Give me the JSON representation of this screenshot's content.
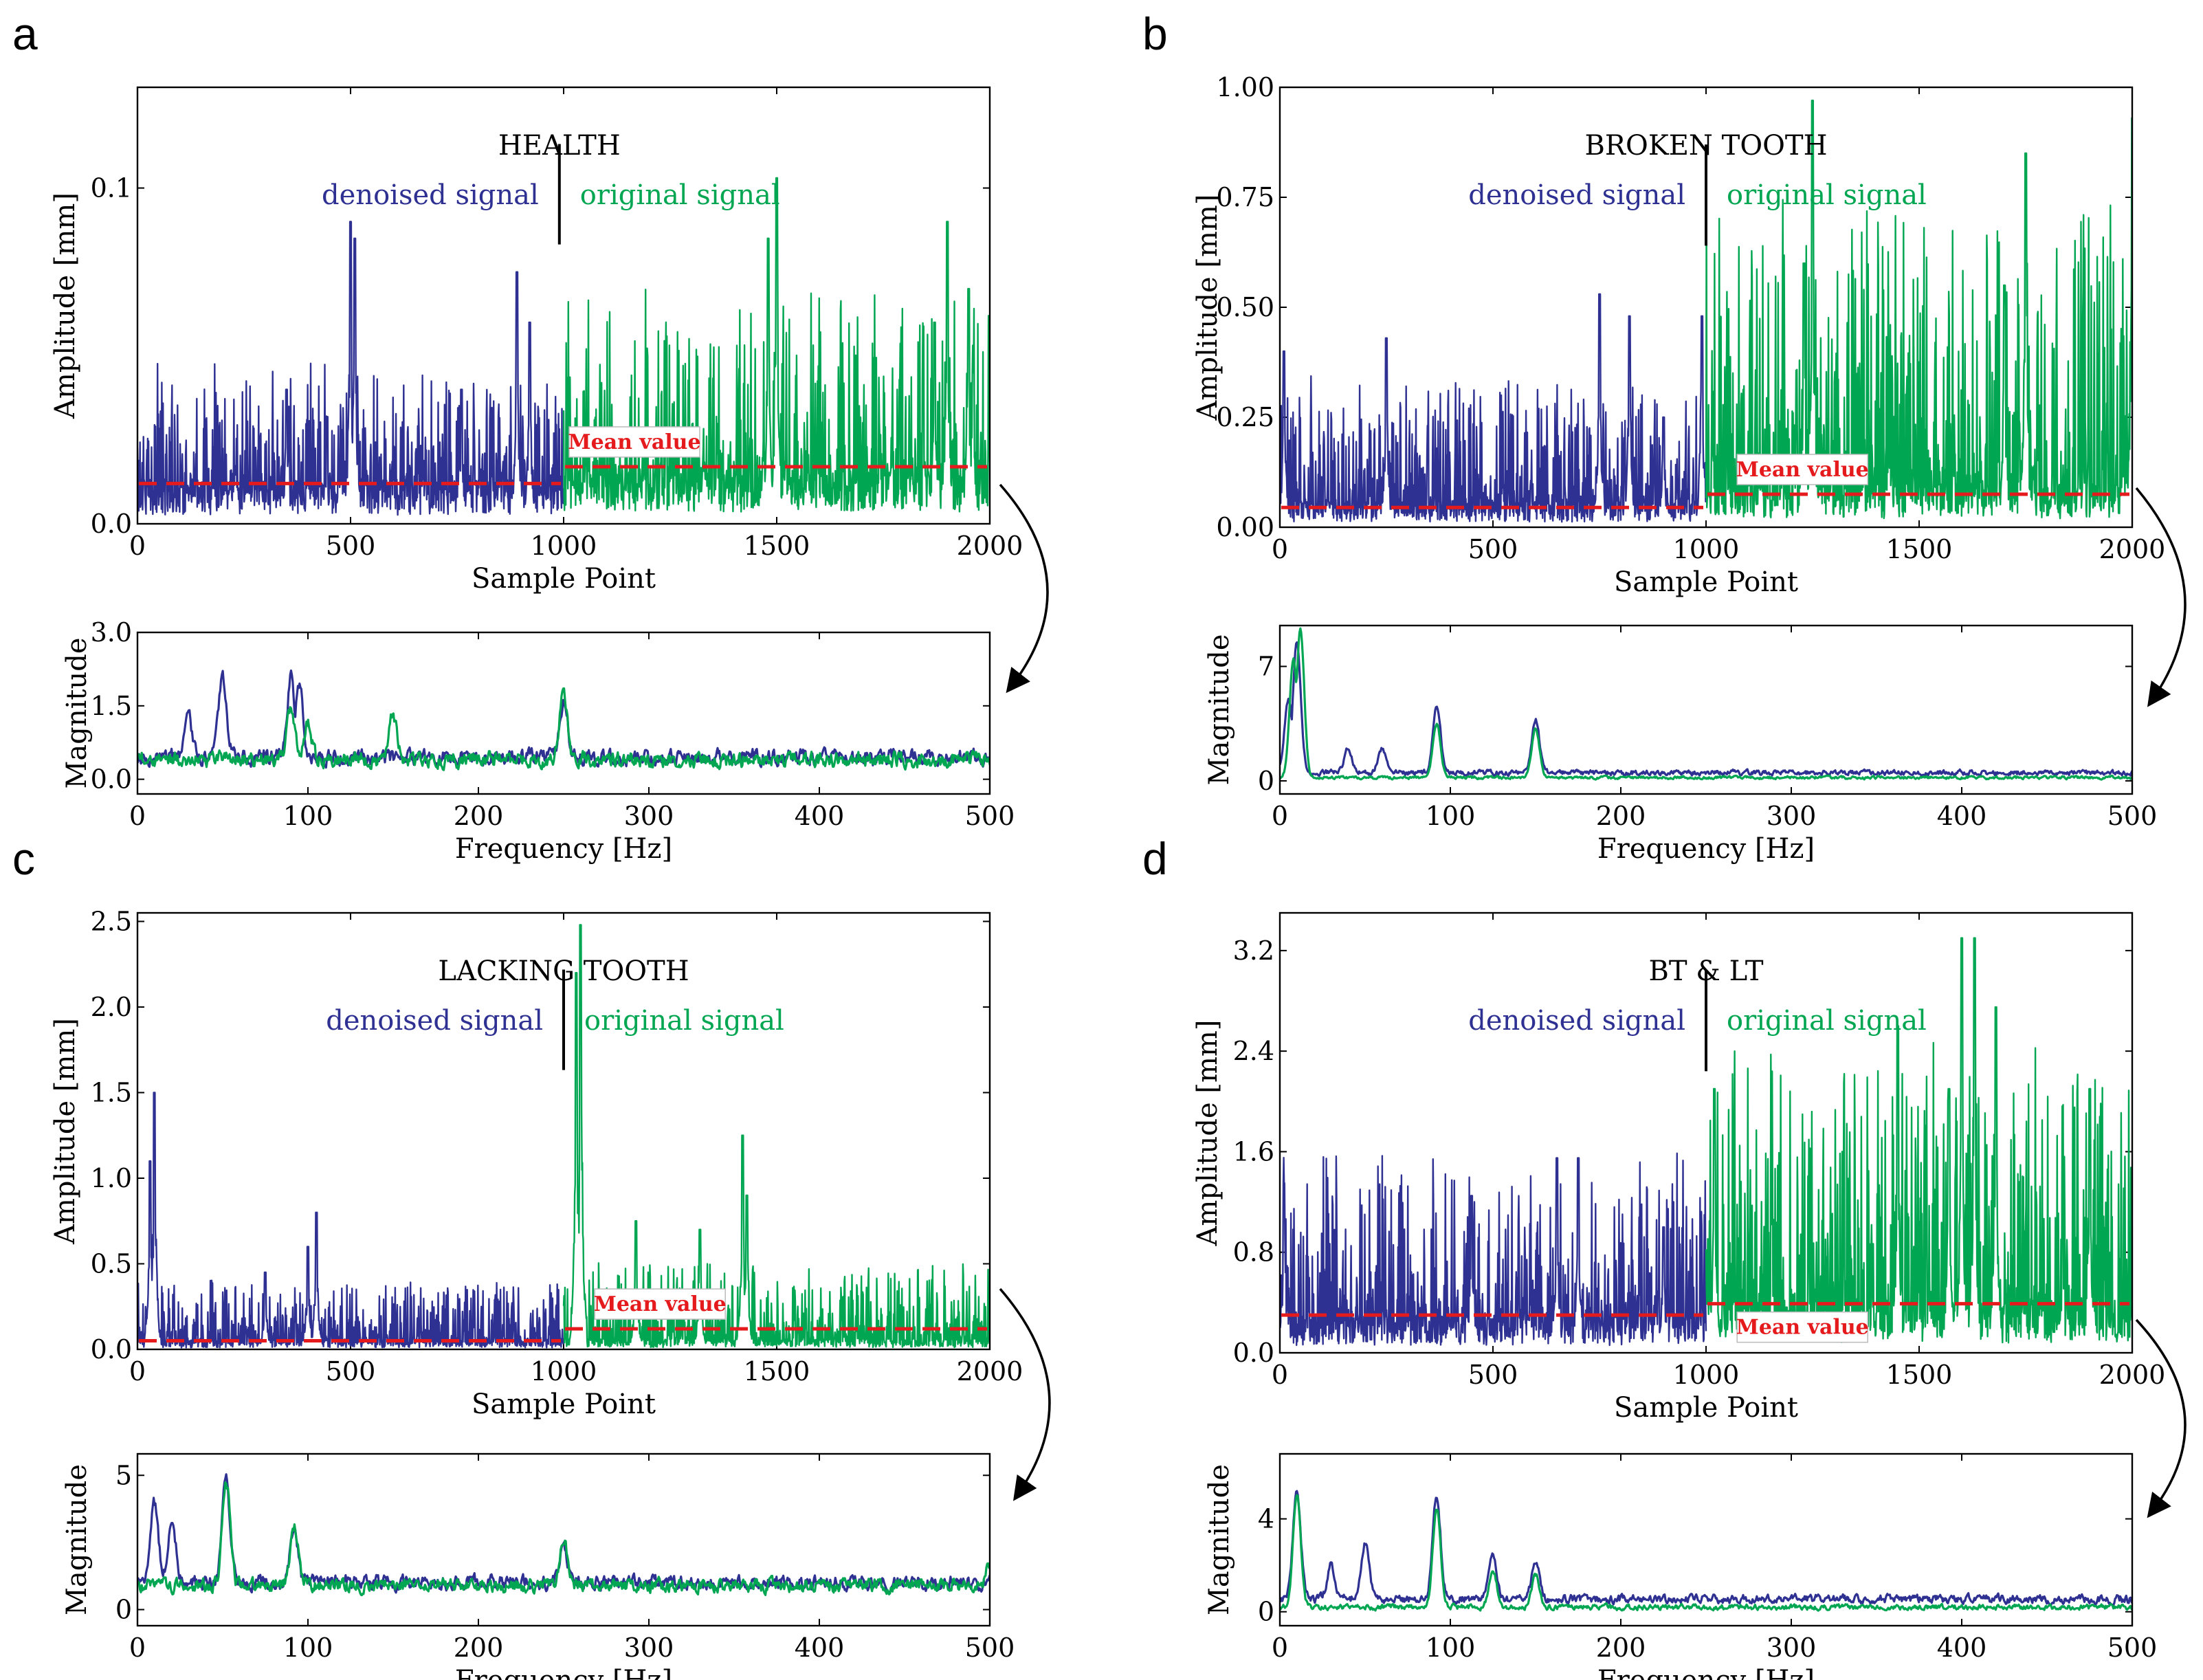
{
  "figure": {
    "colors": {
      "denoised": "#2e3192",
      "original": "#00a651",
      "mean": "#e41a1c",
      "axis": "#000000"
    },
    "icons": {
      "arrow": "curved-arrow-icon"
    }
  },
  "chart_data": [
    {
      "panel": "a",
      "type": "line",
      "title": "HEALTH",
      "time": {
        "xlabel": "Sample Point",
        "ylabel": "Amplitude [mm]",
        "xlim": [
          0,
          2000
        ],
        "ylim": [
          0,
          0.13
        ],
        "xticks": [
          0,
          500,
          1000,
          1500,
          2000
        ],
        "xtick_labels": [
          "0",
          "500",
          "1000",
          "1500",
          "2000"
        ],
        "yticks": [
          0,
          0.1
        ],
        "ytick_labels": [
          "0.0",
          "0.1"
        ],
        "series": [
          {
            "name": "denoised signal",
            "x_range": [
              0,
              1000
            ],
            "base": 0.013,
            "noise": 0.012,
            "peaks": [
              [
                500,
                0.09
              ],
              [
                510,
                0.085
              ],
              [
                890,
                0.075
              ],
              [
                920,
                0.06
              ],
              [
                760,
                0.04
              ],
              [
                350,
                0.04
              ]
            ]
          },
          {
            "name": "original signal",
            "x_range": [
              1000,
              2000
            ],
            "base": 0.017,
            "noise": 0.018,
            "peaks": [
              [
                1500,
                0.103
              ],
              [
                1480,
                0.085
              ],
              [
                1900,
                0.09
              ],
              [
                1950,
                0.07
              ],
              [
                1870,
                0.06
              ],
              [
                1960,
                0.045
              ]
            ]
          }
        ],
        "divider_x": 990,
        "mean_lines": [
          {
            "label": "denoised mean",
            "x_range": [
              0,
              1000
            ],
            "value": 0.012
          },
          {
            "label": "original mean",
            "x_range": [
              1000,
              2000
            ],
            "value": 0.017
          }
        ],
        "mean_label": "Mean value",
        "mean_label_x": 1000,
        "text_labels": {
          "denoised": "denoised signal",
          "original": "original signal"
        }
      },
      "freq": {
        "xlabel": "Frequency [Hz]",
        "ylabel": "Magnitude",
        "xlim": [
          0,
          500
        ],
        "ylim": [
          -0.3,
          3.0
        ],
        "xticks": [
          0,
          100,
          200,
          300,
          400,
          500
        ],
        "xtick_labels": [
          "0",
          "100",
          "200",
          "300",
          "400",
          "500"
        ],
        "yticks": [
          0,
          1.5,
          3.0
        ],
        "ytick_labels": [
          "0.0",
          "1.5",
          "3.0"
        ],
        "denoised": {
          "base": 0.45,
          "noise": 0.35,
          "peaks": [
            [
              50,
              2.1
            ],
            [
              90,
              2.1
            ],
            [
              95,
              2.0
            ],
            [
              250,
              1.6
            ],
            [
              30,
              1.2
            ]
          ]
        },
        "original": {
          "base": 0.4,
          "noise": 0.35,
          "peaks": [
            [
              90,
              1.5
            ],
            [
              150,
              1.3
            ],
            [
              250,
              1.8
            ],
            [
              100,
              1.2
            ]
          ]
        }
      }
    },
    {
      "panel": "b",
      "type": "line",
      "title": "BROKEN TOOTH",
      "time": {
        "xlabel": "Sample Point",
        "ylabel": "Amplitude [mm]",
        "xlim": [
          0,
          2000
        ],
        "ylim": [
          0,
          1.0
        ],
        "xticks": [
          0,
          500,
          1000,
          1500,
          2000
        ],
        "xtick_labels": [
          "0",
          "500",
          "1000",
          "1500",
          "2000"
        ],
        "yticks": [
          0,
          0.25,
          0.5,
          0.75,
          1.0
        ],
        "ytick_labels": [
          "0.00",
          "0.25",
          "0.50",
          "0.75",
          "1.00"
        ],
        "series": [
          {
            "name": "denoised signal",
            "x_range": [
              0,
              1000
            ],
            "base": 0.06,
            "noise": 0.1,
            "peaks": [
              [
                10,
                0.4
              ],
              [
                250,
                0.43
              ],
              [
                750,
                0.53
              ],
              [
                820,
                0.48
              ],
              [
                900,
                0.25
              ],
              [
                990,
                0.48
              ]
            ]
          },
          {
            "name": "original signal",
            "x_range": [
              1000,
              2000
            ],
            "base": 0.1,
            "noise": 0.22,
            "peaks": [
              [
                1250,
                0.97
              ],
              [
                1750,
                0.85
              ],
              [
                2000,
                0.93
              ],
              [
                1700,
                0.55
              ],
              [
                1230,
                0.6
              ]
            ]
          }
        ],
        "divider_x": 1000,
        "mean_lines": [
          {
            "label": "denoised mean",
            "x_range": [
              0,
              1000
            ],
            "value": 0.045
          },
          {
            "label": "original mean",
            "x_range": [
              1000,
              2000
            ],
            "value": 0.075
          }
        ],
        "mean_label": "Mean value",
        "mean_label_x": 1060,
        "text_labels": {
          "denoised": "denoised signal",
          "original": "original signal"
        }
      },
      "freq": {
        "xlabel": "Frequency [Hz]",
        "ylabel": "Magnitude",
        "xlim": [
          0,
          500
        ],
        "ylim": [
          -0.8,
          9.5
        ],
        "xticks": [
          0,
          100,
          200,
          300,
          400,
          500
        ],
        "xtick_labels": [
          "0",
          "100",
          "200",
          "300",
          "400",
          "500"
        ],
        "yticks": [
          0,
          7
        ],
        "ytick_labels": [
          "0",
          "7"
        ],
        "denoised": {
          "base": 0.5,
          "noise": 0.35,
          "peaks": [
            [
              10,
              8.5
            ],
            [
              5,
              5.0
            ],
            [
              92,
              4.6
            ],
            [
              150,
              3.8
            ],
            [
              40,
              2.0
            ],
            [
              60,
              2.0
            ]
          ]
        },
        "original": {
          "base": 0.2,
          "noise": 0.2,
          "peaks": [
            [
              12,
              9.3
            ],
            [
              8,
              7.5
            ],
            [
              92,
              3.5
            ],
            [
              150,
              3.2
            ]
          ]
        }
      }
    },
    {
      "panel": "c",
      "type": "line",
      "title": "LACKING TOOTH",
      "time": {
        "xlabel": "Sample Point",
        "ylabel": "Amplitude [mm]",
        "xlim": [
          0,
          2000
        ],
        "ylim": [
          0,
          2.55
        ],
        "xticks": [
          0,
          500,
          1000,
          1500,
          2000
        ],
        "xtick_labels": [
          "0",
          "500",
          "1000",
          "1500",
          "2000"
        ],
        "yticks": [
          0,
          0.5,
          1.0,
          1.5,
          2.0,
          2.5
        ],
        "ytick_labels": [
          "0.0",
          "0.5",
          "1.0",
          "1.5",
          "2.0",
          "2.5"
        ],
        "series": [
          {
            "name": "denoised signal",
            "x_range": [
              0,
              1000
            ],
            "base": 0.05,
            "noise": 0.12,
            "peaks": [
              [
                40,
                1.5
              ],
              [
                30,
                1.1
              ],
              [
                420,
                0.8
              ],
              [
                300,
                0.45
              ],
              [
                400,
                0.6
              ]
            ]
          },
          {
            "name": "original signal",
            "x_range": [
              1000,
              2000
            ],
            "base": 0.06,
            "noise": 0.15,
            "peaks": [
              [
                1040,
                2.48
              ],
              [
                1030,
                2.2
              ],
              [
                1420,
                1.25
              ],
              [
                1430,
                0.9
              ],
              [
                1320,
                0.7
              ],
              [
                1170,
                0.75
              ]
            ]
          }
        ],
        "divider_x": 1000,
        "mean_lines": [
          {
            "label": "denoised mean",
            "x_range": [
              0,
              1000
            ],
            "value": 0.05
          },
          {
            "label": "original mean",
            "x_range": [
              1000,
              2000
            ],
            "value": 0.12
          }
        ],
        "mean_label": "Mean value",
        "mean_label_x": 1060,
        "text_labels": {
          "denoised": "denoised signal",
          "original": "original signal"
        }
      },
      "freq": {
        "xlabel": "Frequency [Hz]",
        "ylabel": "Magnitude",
        "xlim": [
          0,
          500
        ],
        "ylim": [
          -0.6,
          5.8
        ],
        "xticks": [
          0,
          100,
          200,
          300,
          400,
          500
        ],
        "xtick_labels": [
          "0",
          "100",
          "200",
          "300",
          "400",
          "500"
        ],
        "yticks": [
          0,
          5
        ],
        "ytick_labels": [
          "0",
          "5"
        ],
        "denoised": {
          "base": 1.0,
          "noise": 0.6,
          "peaks": [
            [
              10,
              3.9
            ],
            [
              20,
              3.5
            ],
            [
              52,
              4.8
            ],
            [
              92,
              3.0
            ],
            [
              250,
              2.5
            ]
          ]
        },
        "original": {
          "base": 0.9,
          "noise": 0.55,
          "peaks": [
            [
              52,
              4.9
            ],
            [
              92,
              3.1
            ],
            [
              250,
              2.6
            ],
            [
              500,
              1.7
            ]
          ]
        }
      }
    },
    {
      "panel": "d",
      "type": "line",
      "title": "BT & LT",
      "time": {
        "xlabel": "Sample Point",
        "ylabel": "Amplitude [mm]",
        "xlim": [
          0,
          2000
        ],
        "ylim": [
          0,
          3.5
        ],
        "xticks": [
          0,
          500,
          1000,
          1500,
          2000
        ],
        "xtick_labels": [
          "0",
          "500",
          "1000",
          "1500",
          "2000"
        ],
        "yticks": [
          0,
          0.8,
          1.6,
          2.4,
          3.2
        ],
        "ytick_labels": [
          "0.0",
          "0.8",
          "1.6",
          "2.4",
          "3.2"
        ],
        "series": [
          {
            "name": "denoised signal",
            "x_range": [
              0,
              1000
            ],
            "base": 0.3,
            "noise": 0.45,
            "peaks": [
              [
                10,
                1.35
              ],
              [
                650,
                1.55
              ],
              [
                700,
                1.55
              ],
              [
                450,
                1.25
              ],
              [
                900,
                1.0
              ]
            ]
          },
          {
            "name": "original signal",
            "x_range": [
              1000,
              2000
            ],
            "base": 0.4,
            "noise": 0.7,
            "peaks": [
              [
                1020,
                2.1
              ],
              [
                1600,
                3.3
              ],
              [
                1630,
                3.3
              ],
              [
                1680,
                2.75
              ],
              [
                1450,
                2.6
              ],
              [
                1900,
                2.1
              ],
              [
                1570,
                2.1
              ]
            ]
          }
        ],
        "divider_x": 1000,
        "mean_lines": [
          {
            "label": "denoised mean",
            "x_range": [
              0,
              1000
            ],
            "value": 0.3
          },
          {
            "label": "original mean",
            "x_range": [
              1000,
              2000
            ],
            "value": 0.39
          }
        ],
        "mean_label": "Mean value",
        "mean_label_x": 1060,
        "text_labels": {
          "denoised": "denoised signal",
          "original": "original signal"
        }
      },
      "freq": {
        "xlabel": "Frequency [Hz]",
        "ylabel": "Magnitude",
        "xlim": [
          0,
          500
        ],
        "ylim": [
          -0.6,
          6.8
        ],
        "xticks": [
          0,
          100,
          200,
          300,
          400,
          500
        ],
        "xtick_labels": [
          "0",
          "100",
          "200",
          "300",
          "400",
          "500"
        ],
        "yticks": [
          0,
          4
        ],
        "ytick_labels": [
          "0",
          "4"
        ],
        "denoised": {
          "base": 0.55,
          "noise": 0.4,
          "peaks": [
            [
              10,
              5.3
            ],
            [
              50,
              3.0
            ],
            [
              92,
              5.0
            ],
            [
              125,
              2.5
            ],
            [
              150,
              2.2
            ],
            [
              30,
              2.0
            ]
          ]
        },
        "original": {
          "base": 0.2,
          "noise": 0.25,
          "peaks": [
            [
              10,
              5.0
            ],
            [
              92,
              4.5
            ],
            [
              125,
              1.8
            ],
            [
              150,
              1.6
            ]
          ]
        }
      }
    }
  ]
}
